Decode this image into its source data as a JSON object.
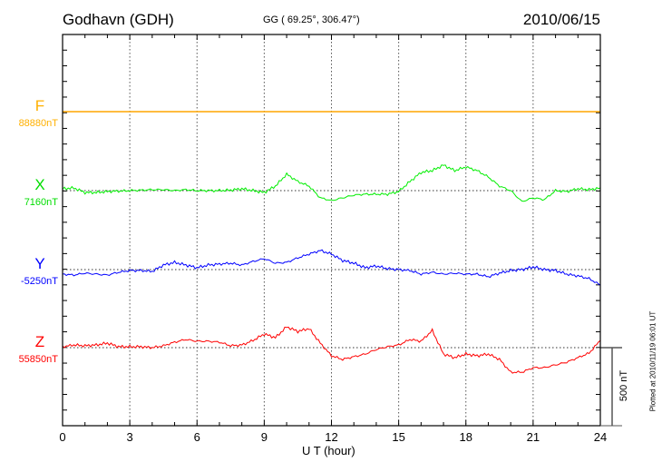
{
  "header": {
    "station": "Godhavn (GDH)",
    "coords": "GG ( 69.25°, 306.47°)",
    "date": "2010/06/15"
  },
  "footer": {
    "plotted": "Plotted at 2010/11/19 06:01 UT",
    "scale_label": "500 nT"
  },
  "chart_data": {
    "type": "line",
    "title": "Godhavn (GDH) 2010/06/15",
    "xlabel": "U T (hour)",
    "ylabel": "",
    "xlim": [
      0,
      24
    ],
    "xticks": [
      0,
      3,
      6,
      9,
      12,
      15,
      18,
      21,
      24
    ],
    "xtick_labels": [
      "0",
      "3",
      "6",
      "9",
      "12",
      "15",
      "18",
      "21",
      "24"
    ],
    "grid": true,
    "y_scale_nT_per_tick": 100,
    "scale_bar_nT": 500,
    "x": [
      0,
      0.5,
      1,
      1.5,
      2,
      2.5,
      3,
      3.5,
      4,
      4.5,
      5,
      5.5,
      6,
      6.5,
      7,
      7.5,
      8,
      8.5,
      9,
      9.5,
      10,
      10.5,
      11,
      11.5,
      12,
      12.5,
      13,
      13.5,
      14,
      14.5,
      15,
      15.5,
      16,
      16.5,
      17,
      17.5,
      18,
      18.5,
      19,
      19.5,
      20,
      20.5,
      21,
      21.5,
      22,
      22.5,
      23,
      23.5,
      24
    ],
    "series": [
      {
        "name": "F",
        "baseline_label": "88880nT",
        "color": "#ffa500",
        "label_color": "#ffb000",
        "values": [
          0,
          0,
          0,
          0,
          0,
          0,
          0,
          0,
          0,
          0,
          0,
          0,
          0,
          0,
          0,
          0,
          0,
          0,
          0,
          0,
          0,
          0,
          0,
          0,
          0,
          0,
          0,
          0,
          0,
          0,
          0,
          0,
          0,
          0,
          0,
          0,
          0,
          0,
          0,
          0,
          0,
          0,
          0,
          0,
          0,
          0,
          0,
          0,
          0
        ]
      },
      {
        "name": "X",
        "baseline_label": "7160nT",
        "color": "#00ee00",
        "label_color": "#00dd00",
        "values": [
          12,
          17,
          -12,
          -12,
          -6,
          -3,
          0,
          3,
          6,
          6,
          0,
          6,
          0,
          0,
          0,
          3,
          12,
          0,
          -12,
          29,
          105,
          58,
          29,
          -46,
          -64,
          -46,
          -29,
          -23,
          -23,
          -23,
          -6,
          58,
          116,
          128,
          163,
          128,
          151,
          128,
          87,
          29,
          0,
          -70,
          -46,
          -58,
          0,
          -6,
          12,
          6,
          17
        ]
      },
      {
        "name": "Y",
        "baseline_label": "-5250nT",
        "color": "#0000ff",
        "label_color": "#0000ff",
        "values": [
          -29,
          -35,
          -23,
          -29,
          -35,
          -17,
          -6,
          -6,
          -12,
          29,
          46,
          29,
          12,
          29,
          35,
          41,
          29,
          52,
          70,
          41,
          46,
          75,
          99,
          122,
          99,
          58,
          41,
          12,
          23,
          6,
          0,
          -6,
          -29,
          -17,
          -29,
          -23,
          -29,
          -29,
          -46,
          -23,
          -6,
          0,
          17,
          0,
          -6,
          -29,
          -41,
          -58,
          -99
        ]
      },
      {
        "name": "Z",
        "baseline_label": "55850nT",
        "color": "#ff0000",
        "label_color": "#ff0000",
        "values": [
          6,
          17,
          12,
          17,
          29,
          6,
          6,
          6,
          0,
          12,
          35,
          52,
          41,
          41,
          35,
          12,
          17,
          46,
          87,
          64,
          133,
          104,
          122,
          29,
          -52,
          -75,
          -58,
          -41,
          -12,
          6,
          17,
          52,
          41,
          110,
          -41,
          -64,
          -41,
          -52,
          -41,
          -75,
          -157,
          -157,
          -128,
          -128,
          -110,
          -93,
          -64,
          -35,
          46
        ]
      }
    ]
  }
}
